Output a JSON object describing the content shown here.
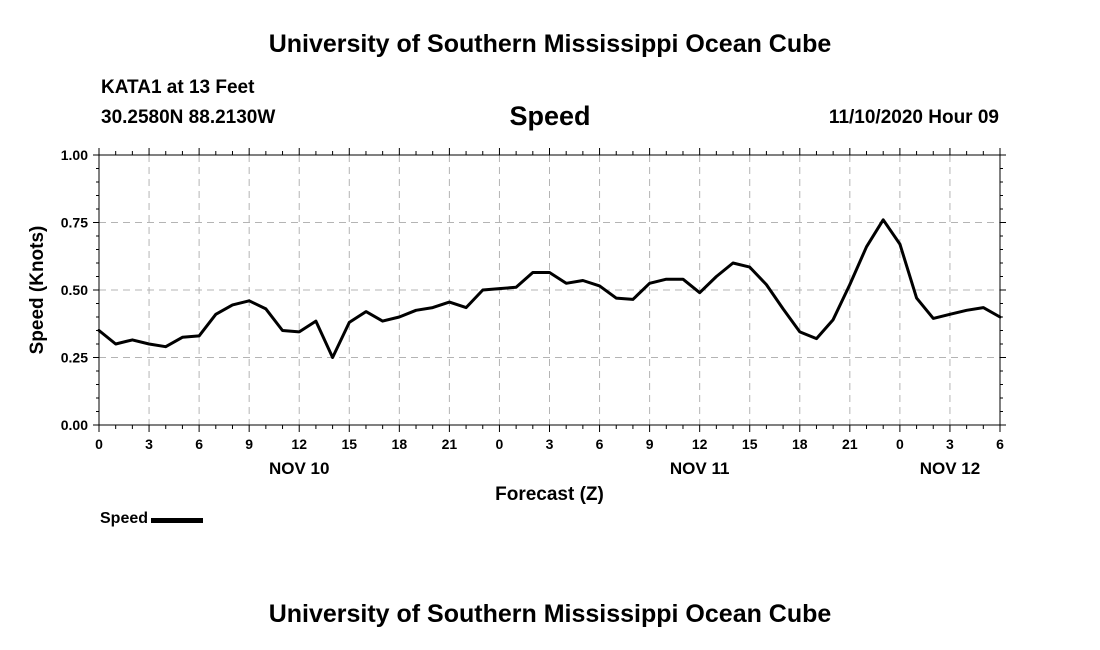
{
  "header": {
    "title": "University of Southern Mississippi Ocean Cube",
    "station": "KATA1 at 13 Feet",
    "coords": "30.2580N 88.2130W",
    "datetime": "11/10/2020 Hour 09"
  },
  "footer": {
    "title": "University of Southern Mississippi Ocean Cube"
  },
  "colors": {
    "line": "#000000",
    "grid": "#b4b4b4",
    "axis": "#000000"
  },
  "chart_data": {
    "type": "line",
    "title": "Speed",
    "xlabel": "Forecast (Z)",
    "ylabel": "Speed (Knots)",
    "xlim": [
      0,
      54
    ],
    "ylim": [
      0,
      1.0
    ],
    "x_tick_values": [
      0,
      3,
      6,
      9,
      12,
      15,
      18,
      21,
      24,
      27,
      30,
      33,
      36,
      39,
      42,
      45,
      48,
      51,
      54
    ],
    "x_tick_labels": [
      "0",
      "3",
      "6",
      "9",
      "12",
      "15",
      "18",
      "21",
      "0",
      "3",
      "6",
      "9",
      "12",
      "15",
      "18",
      "21",
      "0",
      "3",
      "6"
    ],
    "y_ticks": [
      0.0,
      0.25,
      0.5,
      0.75,
      1.0
    ],
    "y_tick_labels": [
      "0.00",
      "0.25",
      "0.50",
      "0.75",
      "1.00"
    ],
    "day_labels": [
      {
        "x": 12,
        "label": "NOV 10"
      },
      {
        "x": 36,
        "label": "NOV 11"
      },
      {
        "x": 51,
        "label": "NOV 12"
      }
    ],
    "grid": true,
    "legend": "bottom-left",
    "series": [
      {
        "name": "Speed",
        "x": [
          0,
          1,
          2,
          3,
          4,
          5,
          6,
          7,
          8,
          9,
          10,
          11,
          12,
          13,
          14,
          15,
          16,
          17,
          18,
          19,
          20,
          21,
          22,
          23,
          24,
          25,
          26,
          27,
          28,
          29,
          30,
          31,
          32,
          33,
          34,
          35,
          36,
          37,
          38,
          39,
          40,
          41,
          42,
          43,
          44,
          45,
          46,
          47,
          48,
          49,
          50,
          51,
          52,
          53,
          54
        ],
        "values": [
          0.35,
          0.3,
          0.315,
          0.3,
          0.29,
          0.325,
          0.33,
          0.41,
          0.445,
          0.46,
          0.43,
          0.35,
          0.345,
          0.385,
          0.25,
          0.38,
          0.42,
          0.385,
          0.4,
          0.425,
          0.435,
          0.455,
          0.435,
          0.5,
          0.505,
          0.51,
          0.565,
          0.565,
          0.525,
          0.535,
          0.515,
          0.47,
          0.465,
          0.525,
          0.54,
          0.54,
          0.49,
          0.55,
          0.6,
          0.585,
          0.52,
          0.43,
          0.345,
          0.32,
          0.39,
          0.52,
          0.66,
          0.76,
          0.67,
          0.47,
          0.395,
          0.41,
          0.425,
          0.435,
          0.4
        ]
      }
    ]
  }
}
